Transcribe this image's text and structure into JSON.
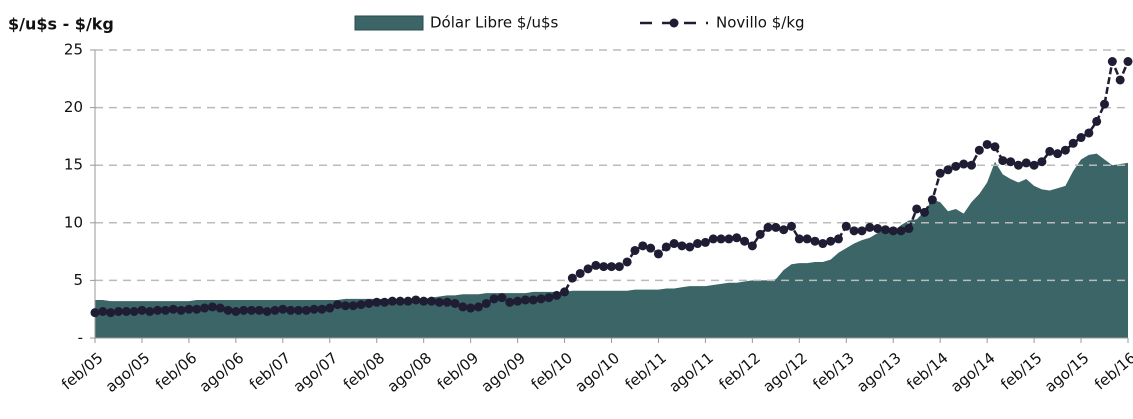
{
  "chart_data": {
    "type": "area-line",
    "y_label": "$/u$s - $/kg",
    "categories": [
      "feb/05",
      null,
      null,
      null,
      null,
      null,
      "ago/05",
      null,
      null,
      null,
      null,
      null,
      "feb/06",
      null,
      null,
      null,
      null,
      null,
      "ago/06",
      null,
      null,
      null,
      null,
      null,
      "feb/07",
      null,
      null,
      null,
      null,
      null,
      "ago/07",
      null,
      null,
      null,
      null,
      null,
      "feb/08",
      null,
      null,
      null,
      null,
      null,
      "ago/08",
      null,
      null,
      null,
      null,
      null,
      "feb/09",
      null,
      null,
      null,
      null,
      null,
      "ago/09",
      null,
      null,
      null,
      null,
      null,
      "feb/10",
      null,
      null,
      null,
      null,
      null,
      "ago/10",
      null,
      null,
      null,
      null,
      null,
      "feb/11",
      null,
      null,
      null,
      null,
      null,
      "ago/11",
      null,
      null,
      null,
      null,
      null,
      "feb/12",
      null,
      null,
      null,
      null,
      null,
      "ago/12",
      null,
      null,
      null,
      null,
      null,
      "feb/13",
      null,
      null,
      null,
      null,
      null,
      "ago/13",
      null,
      null,
      null,
      null,
      null,
      "feb/14",
      null,
      null,
      null,
      null,
      null,
      "ago/14",
      null,
      null,
      null,
      null,
      null,
      "feb/15",
      null,
      null,
      null,
      null,
      null,
      "ago/15",
      null,
      null,
      null,
      null,
      null,
      "feb/16"
    ],
    "series": [
      {
        "name": "Dólar Libre $/u$s",
        "kind": "area",
        "color": "#3b6566",
        "values": [
          3.3,
          3.3,
          3.2,
          3.2,
          3.2,
          3.2,
          3.2,
          3.2,
          3.2,
          3.2,
          3.2,
          3.2,
          3.2,
          3.3,
          3.3,
          3.3,
          3.3,
          3.3,
          3.3,
          3.3,
          3.3,
          3.3,
          3.3,
          3.3,
          3.3,
          3.3,
          3.3,
          3.3,
          3.3,
          3.3,
          3.3,
          3.3,
          3.4,
          3.4,
          3.4,
          3.4,
          3.4,
          3.4,
          3.4,
          3.4,
          3.4,
          3.4,
          3.4,
          3.5,
          3.6,
          3.7,
          3.7,
          3.8,
          3.8,
          3.8,
          3.9,
          3.9,
          3.9,
          3.9,
          3.9,
          3.9,
          4.0,
          4.0,
          4.0,
          4.0,
          4.0,
          4.1,
          4.1,
          4.1,
          4.1,
          4.1,
          4.1,
          4.1,
          4.1,
          4.2,
          4.2,
          4.2,
          4.2,
          4.3,
          4.3,
          4.4,
          4.5,
          4.5,
          4.5,
          4.6,
          4.7,
          4.8,
          4.8,
          4.9,
          5.0,
          5.0,
          5.0,
          5.1,
          5.9,
          6.4,
          6.5,
          6.5,
          6.6,
          6.6,
          6.8,
          7.4,
          7.8,
          8.2,
          8.5,
          8.7,
          9.1,
          9.4,
          9.2,
          9.8,
          10.2,
          10.3,
          11.0,
          12.0,
          11.8,
          11.0,
          11.2,
          10.8,
          11.8,
          12.5,
          13.5,
          15.3,
          14.2,
          13.8,
          13.5,
          13.8,
          13.2,
          12.9,
          12.8,
          13.0,
          13.2,
          14.5,
          15.5,
          15.9,
          16.0,
          15.5,
          15.0,
          15.1,
          15.2
        ]
      },
      {
        "name": "Novillo $/kg",
        "kind": "line",
        "color": "#1e1d33",
        "values": [
          2.2,
          2.3,
          2.2,
          2.3,
          2.3,
          2.3,
          2.4,
          2.3,
          2.4,
          2.4,
          2.5,
          2.4,
          2.5,
          2.5,
          2.6,
          2.7,
          2.6,
          2.4,
          2.3,
          2.4,
          2.4,
          2.4,
          2.3,
          2.4,
          2.5,
          2.4,
          2.4,
          2.4,
          2.5,
          2.5,
          2.6,
          2.9,
          2.8,
          2.8,
          2.9,
          3.0,
          3.1,
          3.1,
          3.2,
          3.2,
          3.2,
          3.3,
          3.2,
          3.2,
          3.1,
          3.1,
          3.0,
          2.7,
          2.6,
          2.7,
          3.0,
          3.4,
          3.5,
          3.1,
          3.2,
          3.3,
          3.3,
          3.4,
          3.5,
          3.7,
          4.0,
          5.2,
          5.6,
          6.0,
          6.3,
          6.2,
          6.2,
          6.2,
          6.6,
          7.6,
          8.0,
          7.8,
          7.3,
          7.9,
          8.2,
          8.0,
          7.9,
          8.2,
          8.3,
          8.6,
          8.6,
          8.6,
          8.7,
          8.4,
          8.0,
          9.0,
          9.6,
          9.6,
          9.4,
          9.7,
          8.6,
          8.6,
          8.4,
          8.2,
          8.4,
          8.6,
          9.7,
          9.3,
          9.3,
          9.6,
          9.5,
          9.4,
          9.3,
          9.3,
          9.5,
          11.2,
          10.9,
          12.0,
          14.3,
          14.6,
          14.9,
          15.1,
          15.0,
          16.3,
          16.8,
          16.6,
          15.4,
          15.3,
          15.0,
          15.2,
          15.0,
          15.3,
          16.2,
          16.0,
          16.3,
          16.9,
          17.4,
          17.8,
          18.8,
          20.3,
          24.0,
          22.4,
          24.0
        ]
      }
    ],
    "ylim": [
      0,
      25
    ],
    "yticks": [
      {
        "value": 0,
        "label": "-"
      },
      5,
      10,
      15,
      20,
      25
    ],
    "grid": true,
    "legend": "top"
  }
}
